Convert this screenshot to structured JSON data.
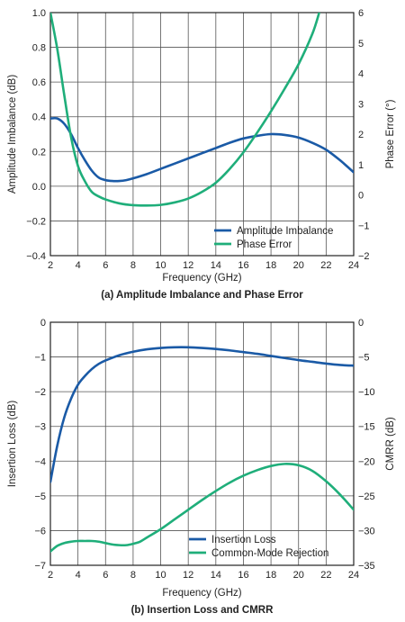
{
  "chart_data": [
    {
      "type": "line",
      "caption": "(a) Amplitude Imbalance and Phase Error",
      "xlabel": "Frequency (GHz)",
      "ylabel": "Amplitude Imbalance (dB)",
      "y2label": "Phase Error (°)",
      "xlim": [
        2,
        24
      ],
      "ylim": [
        -0.4,
        1.0
      ],
      "y2lim": [
        -2,
        6
      ],
      "xticks": [
        2,
        4,
        6,
        8,
        10,
        12,
        14,
        16,
        18,
        20,
        22,
        24
      ],
      "yticks": [
        1.0,
        0.8,
        0.6,
        0.4,
        0.2,
        0.0,
        -0.2,
        -0.4
      ],
      "ytick_labels": [
        "1.0",
        "0.8",
        "0.6",
        "0.4",
        "0.2",
        "0.0",
        "−0.2",
        "−0.4"
      ],
      "y2ticks": [
        6,
        5,
        4,
        3,
        2,
        1,
        0,
        -1,
        -2
      ],
      "y2tick_labels": [
        "6",
        "5",
        "4",
        "3",
        "2",
        "1",
        "0",
        "−1",
        "−2"
      ],
      "grid": true,
      "legend_position": "bottom-right",
      "series": [
        {
          "name": "Amplitude Imbalance",
          "axis": "left",
          "color": "#1a5aa6",
          "x": [
            2,
            2.5,
            3,
            3.5,
            4,
            4.5,
            5,
            5.5,
            6,
            6.5,
            7,
            7.5,
            8,
            9,
            10,
            11,
            12,
            13,
            14,
            15,
            16,
            17,
            18,
            19,
            20,
            21,
            22,
            23,
            24
          ],
          "y": [
            0.39,
            0.39,
            0.36,
            0.3,
            0.22,
            0.15,
            0.09,
            0.05,
            0.035,
            0.03,
            0.03,
            0.035,
            0.045,
            0.07,
            0.1,
            0.13,
            0.16,
            0.19,
            0.22,
            0.25,
            0.275,
            0.29,
            0.3,
            0.295,
            0.28,
            0.25,
            0.21,
            0.15,
            0.08
          ]
        },
        {
          "name": "Phase Error",
          "axis": "right",
          "color": "#1fae7a",
          "x": [
            2,
            2.5,
            3,
            3.5,
            4,
            4.5,
            5,
            5.5,
            6,
            7,
            8,
            9,
            10,
            11,
            12,
            13,
            14,
            15,
            16,
            17,
            18,
            19,
            20,
            21,
            21.5
          ],
          "y": [
            6.0,
            4.8,
            3.3,
            1.9,
            0.95,
            0.45,
            0.1,
            -0.05,
            -0.15,
            -0.28,
            -0.34,
            -0.35,
            -0.33,
            -0.25,
            -0.12,
            0.1,
            0.4,
            0.85,
            1.4,
            2.05,
            2.75,
            3.5,
            4.3,
            5.3,
            6.0
          ]
        }
      ]
    },
    {
      "type": "line",
      "caption": "(b) Insertion Loss and CMRR",
      "xlabel": "Frequency (GHz)",
      "ylabel": "Insertion Loss (dB)",
      "y2label": "CMRR (dB)",
      "xlim": [
        2,
        24
      ],
      "ylim": [
        -7,
        0
      ],
      "y2lim": [
        -35,
        0
      ],
      "xticks": [
        2,
        4,
        6,
        8,
        10,
        12,
        14,
        16,
        18,
        20,
        22,
        24
      ],
      "yticks": [
        0,
        -1,
        -2,
        -3,
        -4,
        -5,
        -6,
        -7
      ],
      "ytick_labels": [
        "0",
        "−1",
        "−2",
        "−3",
        "−4",
        "−5",
        "−6",
        "−7"
      ],
      "y2ticks": [
        0,
        -5,
        -10,
        -15,
        -20,
        -25,
        -30,
        -35
      ],
      "y2tick_labels": [
        "0",
        "−5",
        "−10",
        "−15",
        "−20",
        "−25",
        "−30",
        "−35"
      ],
      "grid": true,
      "legend_position": "bottom-right",
      "series": [
        {
          "name": "Insertion Loss",
          "axis": "left",
          "color": "#1a5aa6",
          "x": [
            2,
            2.5,
            3,
            3.5,
            4,
            4.5,
            5,
            5.5,
            6,
            7,
            8,
            9,
            10,
            11,
            12,
            13,
            14,
            15,
            16,
            17,
            18,
            19,
            20,
            21,
            22,
            23,
            24
          ],
          "y": [
            -4.6,
            -3.55,
            -2.75,
            -2.2,
            -1.8,
            -1.55,
            -1.35,
            -1.2,
            -1.1,
            -0.95,
            -0.85,
            -0.78,
            -0.74,
            -0.72,
            -0.72,
            -0.74,
            -0.77,
            -0.81,
            -0.86,
            -0.91,
            -0.97,
            -1.03,
            -1.09,
            -1.14,
            -1.19,
            -1.23,
            -1.25
          ]
        },
        {
          "name": "Common-Mode Rejection",
          "axis": "right",
          "color": "#1fae7a",
          "x": [
            2,
            2.5,
            3,
            3.5,
            4,
            4.5,
            5,
            5.5,
            6,
            6.5,
            7,
            7.5,
            8,
            8.5,
            9,
            10,
            11,
            12,
            13,
            14,
            15,
            16,
            17,
            18,
            19,
            20,
            21,
            22,
            23,
            24
          ],
          "y": [
            -33,
            -32.2,
            -31.8,
            -31.6,
            -31.5,
            -31.5,
            -31.5,
            -31.6,
            -31.8,
            -32.0,
            -32.1,
            -32.1,
            -31.9,
            -31.6,
            -31.0,
            -29.8,
            -28.4,
            -27.0,
            -25.6,
            -24.3,
            -23.1,
            -22.1,
            -21.3,
            -20.7,
            -20.4,
            -20.6,
            -21.4,
            -22.9,
            -24.8,
            -27.0
          ]
        }
      ]
    }
  ]
}
